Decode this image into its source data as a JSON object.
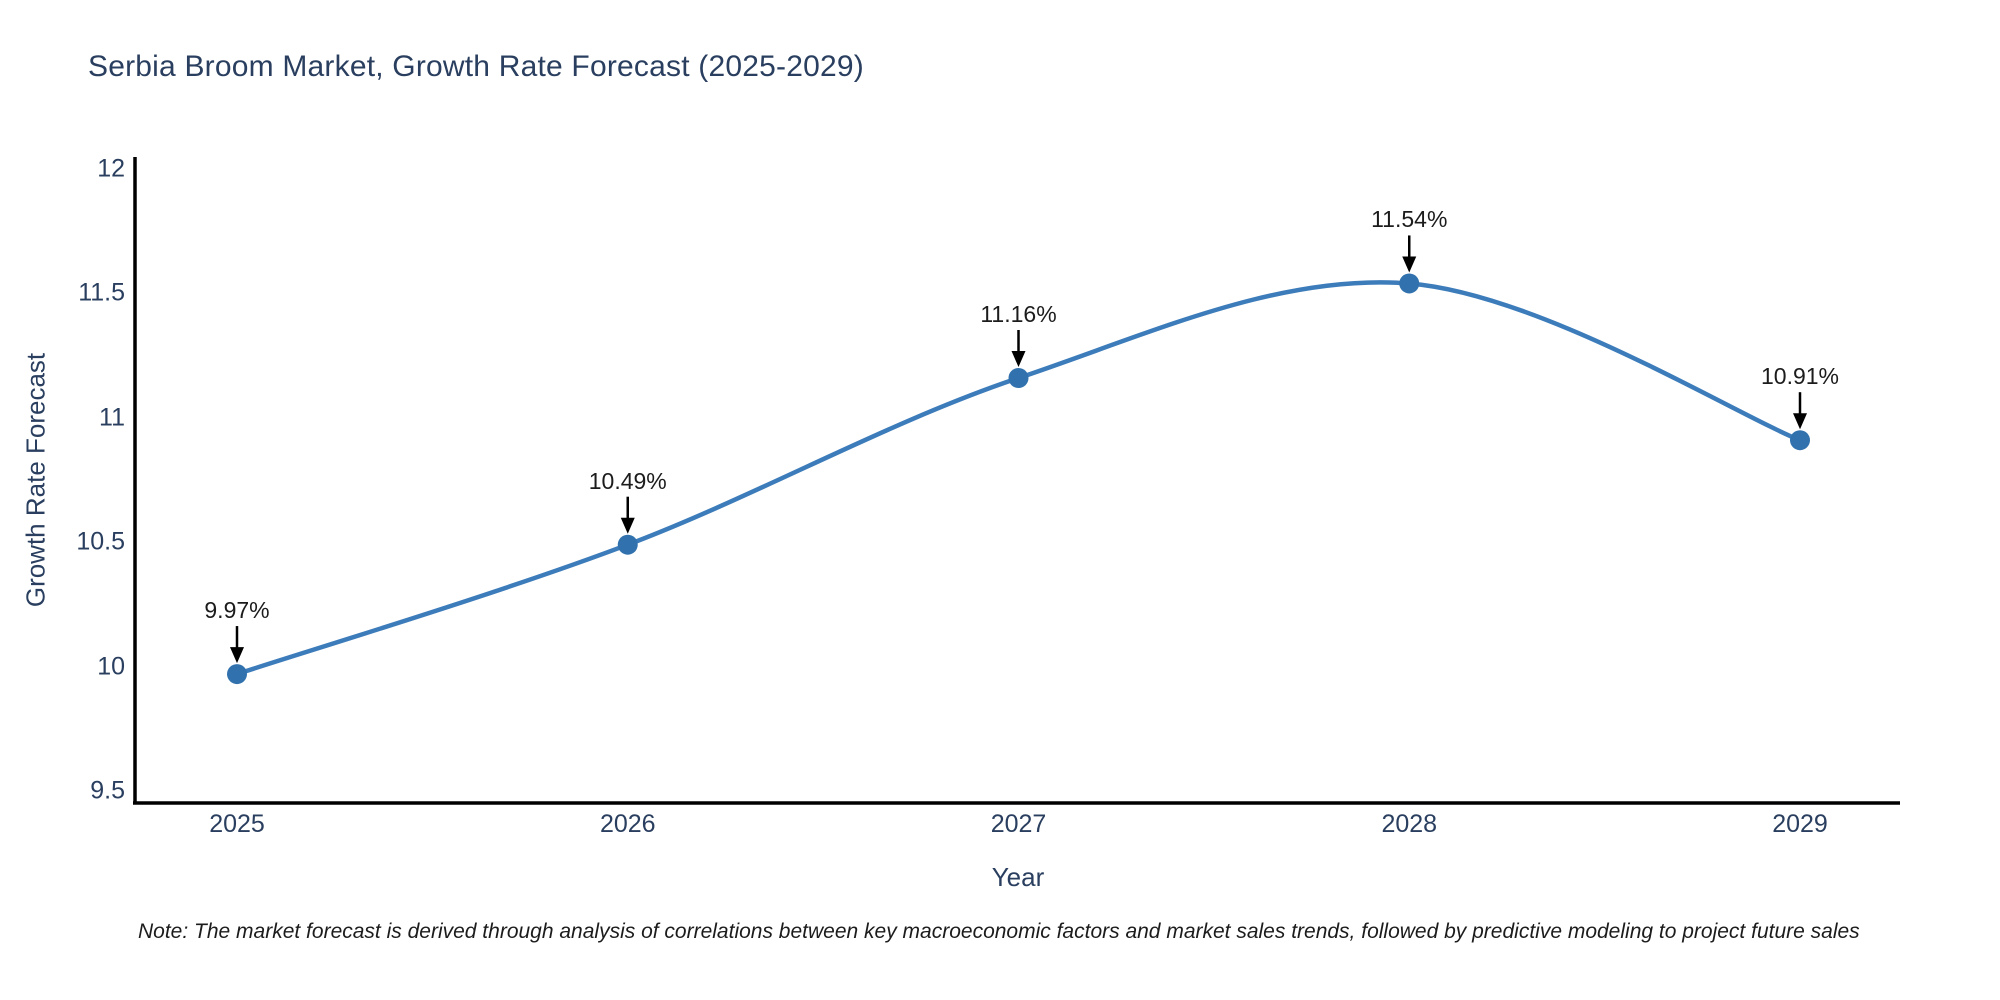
{
  "title": "Serbia Broom Market, Growth Rate Forecast (2025-2029)",
  "note": "Note: The market forecast is derived through analysis of correlations between key macroeconomic factors and market sales trends, followed by predictive modeling to project future sales",
  "colors": {
    "line": "#3d7cba",
    "marker": "#3172ae",
    "axis": "#000000",
    "tick_text": "#2a3f5f",
    "annotation_text": "#1c1c1c",
    "arrow": "#000000",
    "background": "#ffffff"
  },
  "chart_data": {
    "type": "line",
    "title": "Serbia Broom Market, Growth Rate Forecast (2025-2029)",
    "xlabel": "Year",
    "ylabel": "Growth Rate Forecast",
    "x": [
      2025,
      2026,
      2027,
      2028,
      2029
    ],
    "y": [
      9.97,
      10.49,
      11.16,
      11.54,
      10.91
    ],
    "point_labels": [
      "9.97%",
      "10.49%",
      "11.16%",
      "11.54%",
      "10.91%"
    ],
    "xticks": [
      "2025",
      "2026",
      "2027",
      "2028",
      "2029"
    ],
    "yticks": [
      "12",
      "11.5",
      "11",
      "10.5",
      "10",
      "9.5"
    ],
    "ytick_values": [
      12,
      11.5,
      11,
      10.5,
      10,
      9.5
    ],
    "ylim": [
      9.45,
      12.05
    ],
    "xlim": [
      2024.74,
      2029.26
    ],
    "line_shape": "spline",
    "markers": true,
    "grid": false,
    "legend_position": "none",
    "annotations": "value labels with downward arrows above each point"
  }
}
